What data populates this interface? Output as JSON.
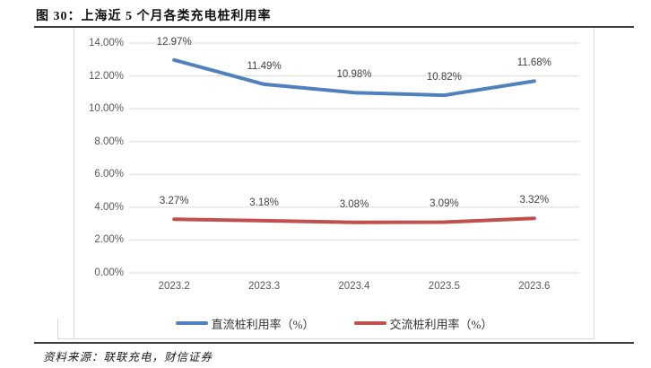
{
  "figure": {
    "title": "图 30：上海近 5 个月各类充电桩利用率",
    "source": "资料来源：联联充电，财信证券"
  },
  "chart_data": {
    "type": "line",
    "title": "上海近 5 个月各类充电桩利用率",
    "categories": [
      "2023.2",
      "2023.3",
      "2023.4",
      "2023.5",
      "2023.6"
    ],
    "series": [
      {
        "name": "直流桩利用率（%）",
        "color": "#4F81BD",
        "values": [
          12.97,
          11.49,
          10.98,
          10.82,
          11.68
        ],
        "labels": [
          "12.97%",
          "11.49%",
          "10.98%",
          "10.82%",
          "11.68%"
        ]
      },
      {
        "name": "交流桩利用率（%）",
        "color": "#C0504D",
        "values": [
          3.27,
          3.18,
          3.08,
          3.09,
          3.32
        ],
        "labels": [
          "3.27%",
          "3.18%",
          "3.08%",
          "3.09%",
          "3.32%"
        ]
      }
    ],
    "ylim": [
      0,
      14
    ],
    "ytick_step": 2,
    "ytick_labels": [
      "0.00%",
      "2.00%",
      "4.00%",
      "6.00%",
      "8.00%",
      "10.00%",
      "12.00%",
      "14.00%"
    ],
    "grid": true,
    "grid_color": "#dcdcdc",
    "legend_position": "bottom"
  }
}
